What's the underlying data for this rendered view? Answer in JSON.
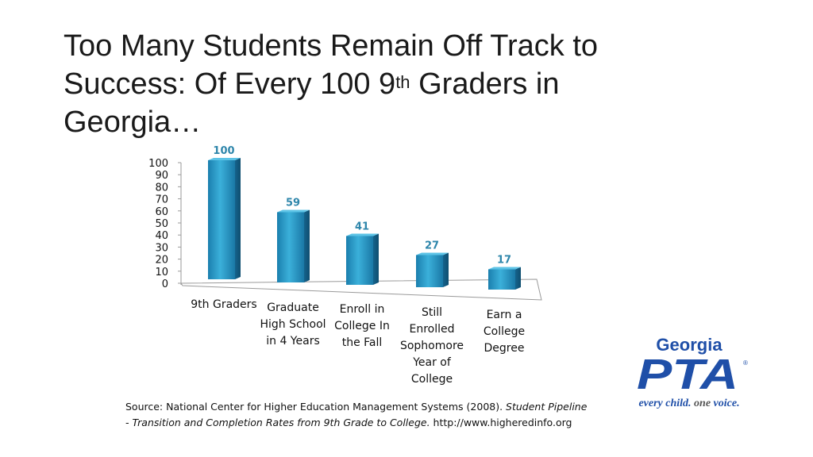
{
  "title": {
    "line_a": "Too Many Students Remain Off Track to",
    "line_b_pre": "Success: Of Every 100 9",
    "line_b_sup": "th",
    "line_b_post": " Graders in",
    "line_c": "Georgia…"
  },
  "chart_data": {
    "type": "bar",
    "categories": [
      [
        "9th Graders"
      ],
      [
        "Graduate",
        "High School",
        "in 4 Years"
      ],
      [
        "Enroll in",
        "College In",
        "the Fall"
      ],
      [
        "Still",
        "Enrolled",
        "Sophomore",
        "Year of",
        "College"
      ],
      [
        "Earn a",
        "College",
        "Degree"
      ]
    ],
    "values": [
      100,
      59,
      41,
      27,
      17
    ],
    "yticks": [
      "0",
      "10",
      "20",
      "30",
      "40",
      "50",
      "60",
      "70",
      "80",
      "90",
      "100"
    ],
    "ylim": [
      0,
      100
    ],
    "data_labels": true,
    "label_color": "#2e86ab",
    "bar_color": "#2a9ac4"
  },
  "source": {
    "prefix": "Source: National Center for Higher Education Management Systems (2008). ",
    "italic_a": "Student Pipeline",
    "line2_italic": "- Transition and Completion Rates from 9th Grade to College.",
    "line2_rest": " http://www.higheredinfo.org"
  },
  "logo": {
    "word": "Georgia",
    "mark": "PTA",
    "reg": "®",
    "tagline_a": "every child. ",
    "tagline_b": "one",
    "tagline_c": " voice.",
    "colors": {
      "blue": "#1f4fa8"
    }
  }
}
